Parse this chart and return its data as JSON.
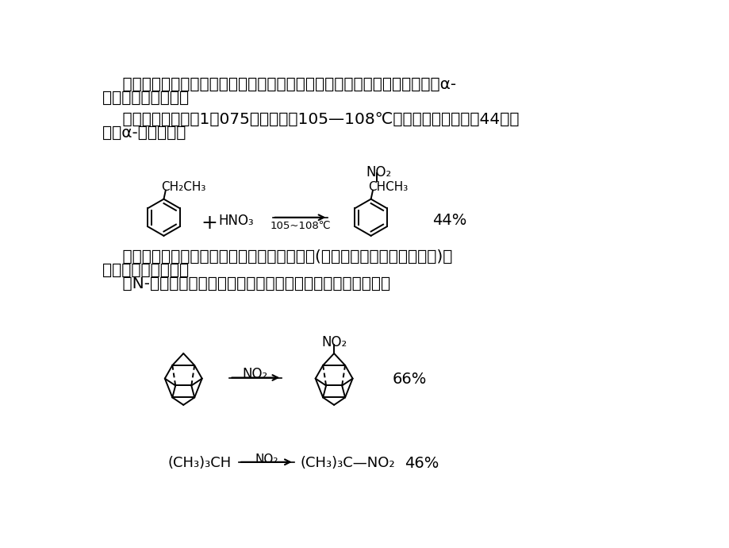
{
  "bg_color": "#ffffff",
  "text_color": "#000000",
  "font_size_main": 14.5,
  "para1_line1": "    烷基苯与稀硝酸在密闭容器中加热反应，烷基部分可顺利地发生硝化，生成α-",
  "para1_line2": "硝基取代的烷基苯。",
  "para2_line1": "    乙苯与相对密度为1．075的稀硝酸于105—108℃反应数小时，即可得44％产",
  "para2_line2": "率的α-硝基乙苯。",
  "para3_line1": "    烷烃的直接硝化，除了用硝酸外，氮的氧化物(如二氧化氮、五氧化二氮等)亦",
  "para3_line2": "是有效的硝化试剂。",
  "para4_line1": "    在N-羟基邻苯二甲酰亚胺催化下，用二氧化氮可使烷烃硝化。",
  "yield1": "44%",
  "yield2": "66%",
  "yield3": "46%",
  "rxn1_condition": "105~108℃",
  "no2_label": "NO₂",
  "hno3_label": "HNO₃",
  "ch2ch3_label": "CH₂CH₃",
  "chch3_label": "CHCH₃",
  "reactant_bottom": "(CH₃)₃CH",
  "product_bottom": "(CH₃)₃C—NO₂"
}
